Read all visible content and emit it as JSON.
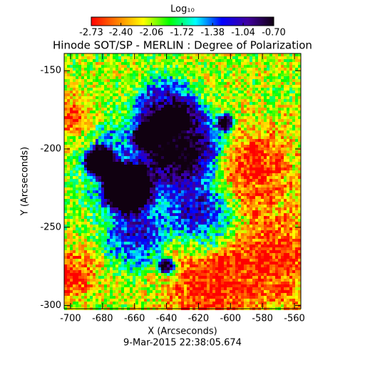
{
  "chart_data": {
    "type": "image",
    "title": "Hinode SOT/SP - MERLIN : Degree of Polarization",
    "xlabel": "X (Arcseconds)",
    "ylabel": "Y (Arcseconds)",
    "footer": "9-Mar-2015 22:38:05.674",
    "xlim": [
      -704,
      -556
    ],
    "ylim": [
      -302,
      -139
    ],
    "xticks": [
      -700,
      -680,
      -660,
      -640,
      -620,
      -600,
      -580,
      -560
    ],
    "yticks": [
      -300,
      -250,
      -200,
      -150
    ],
    "colorbar": {
      "label": "Log₁₀",
      "lim": [
        -2.73,
        -0.7
      ],
      "ticks": [
        -2.73,
        {
          "value": -2.4,
          "label": "-2.40"
        },
        -2.06,
        -1.72,
        -1.38,
        -1.04,
        {
          "value": -0.7,
          "label": "-0.70"
        }
      ],
      "colors": [
        "#ff0000",
        "#ff8000",
        "#ffff00",
        "#00ff00",
        "#00ffff",
        "#0000ff",
        "#4000a0",
        "#100010"
      ]
    }
  }
}
